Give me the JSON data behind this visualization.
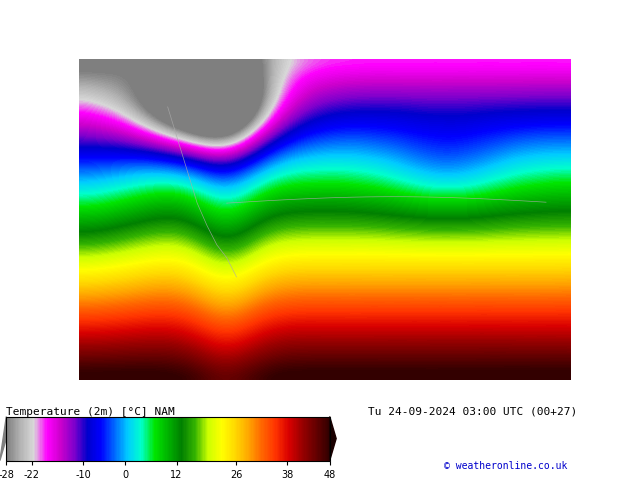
{
  "title_left": "Temperature (2m) [°C] NAM",
  "title_right": "Tu 24-09-2024 03:00 UTC (00+27)",
  "credit": "© weatheronline.co.uk",
  "colorbar_values": [
    -28,
    -22,
    -10,
    0,
    12,
    26,
    38,
    48
  ],
  "colorbar_colors": [
    "#a0a0a0",
    "#c0c0c0",
    "#d8d8d8",
    "#ff00ff",
    "#cc00cc",
    "#9900cc",
    "#3300cc",
    "#0000ff",
    "#0066ff",
    "#00ccff",
    "#00ffcc",
    "#00cc00",
    "#009900",
    "#006600",
    "#003300",
    "#ccff00",
    "#ffff00",
    "#ffcc00",
    "#ff9900",
    "#ff6600",
    "#ff3300",
    "#cc0000",
    "#990000",
    "#660000",
    "#330000"
  ],
  "bg_color": "#ffffff",
  "map_bg": "#c8c8c8",
  "fig_width": 6.34,
  "fig_height": 4.9
}
